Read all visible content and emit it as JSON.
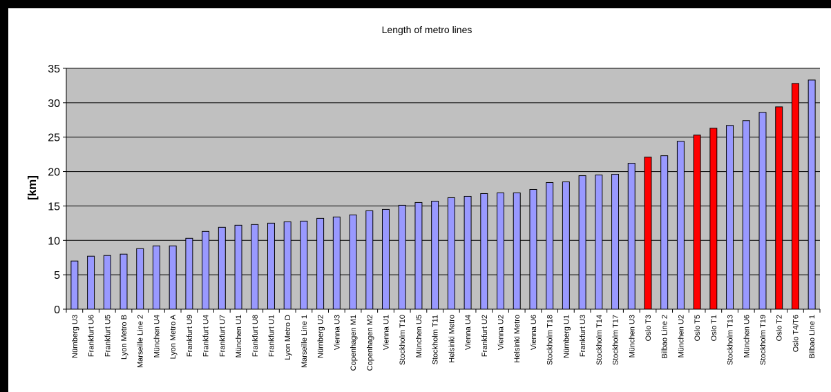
{
  "chart_data": {
    "type": "bar",
    "title": "Length of metro lines",
    "xlabel": "",
    "ylabel": "[km]",
    "ylim": [
      0,
      35
    ],
    "yticks": [
      0,
      5,
      10,
      15,
      20,
      25,
      30,
      35
    ],
    "grid": true,
    "legend": "none",
    "colors": {
      "default": "#9999ff",
      "highlight": "#ff0000",
      "plot_bg": "#c0c0c0",
      "grid": "#000000"
    },
    "categories": [
      "Nürnberg U3",
      "Frankfurt U6",
      "Frankfurt U5",
      "Lyon Metro B",
      "Marseille Line 2",
      "München U4",
      "Lyon Metro A",
      "Frankfurt U9",
      "Frankfurt U4",
      "Frankfurt U7",
      "München U1",
      "Frankfurt U8",
      "Frankfurt U1",
      "Lyon Metro D",
      "Marseille Line 1",
      "Nürnberg U2",
      "Vienna U3",
      "Copenhagen M1",
      "Copenhagen M2",
      "Vienna U1",
      "Stockholm T10",
      "München U5",
      "Stockholm T11",
      "Helsinki Metro",
      "Vienna U4",
      "Frankfurt U2",
      "Vienna U2",
      "Helsinki Metro",
      "Vienna U6",
      "Stockholm T18",
      "Nürnberg U1",
      "Frankfurt U3",
      "Stockholm T14",
      "Stockholm T17",
      "München U3",
      "Oslo T3",
      "Bilbao Line 2",
      "München U2",
      "Oslo T5",
      "Oslo T1",
      "Stockholm T13",
      "München U6",
      "Stockholm T19",
      "Oslo T2",
      "Oslo T4/T6",
      "Bilbao Line 1"
    ],
    "values": [
      7.0,
      7.7,
      7.8,
      8.0,
      8.8,
      9.2,
      9.2,
      10.3,
      11.3,
      11.9,
      12.2,
      12.3,
      12.5,
      12.7,
      12.8,
      13.2,
      13.4,
      13.7,
      14.3,
      14.5,
      15.1,
      15.5,
      15.7,
      16.2,
      16.4,
      16.8,
      16.9,
      16.9,
      17.4,
      18.4,
      18.5,
      19.4,
      19.5,
      19.6,
      21.2,
      22.1,
      22.3,
      24.4,
      25.3,
      26.3,
      26.7,
      27.4,
      28.6,
      29.4,
      32.8,
      33.3
    ],
    "highlighted": [
      "Oslo T3",
      "Oslo T5",
      "Oslo T1",
      "Oslo T2",
      "Oslo T4/T6"
    ]
  }
}
